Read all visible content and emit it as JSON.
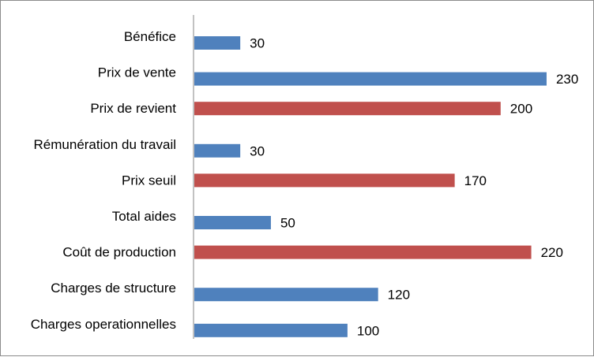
{
  "chart_data": {
    "type": "bar",
    "orientation": "horizontal",
    "title": "",
    "xlabel": "",
    "ylabel": "",
    "grid": false,
    "legend": "none",
    "xlim": [
      0,
      260
    ],
    "categories": [
      "Bénéfice",
      "Prix de vente",
      "Prix de revient",
      "Rémunération du travail",
      "Prix seuil",
      "Total aides",
      "Coût de production",
      "Charges de structure",
      "Charges operationnelles"
    ],
    "series": [
      {
        "color": "#4F81BD",
        "values": [
          30,
          230,
          null,
          30,
          null,
          50,
          null,
          120,
          100
        ]
      },
      {
        "color": "#C0504D",
        "values": [
          null,
          null,
          200,
          null,
          170,
          null,
          220,
          null,
          null
        ]
      }
    ]
  }
}
